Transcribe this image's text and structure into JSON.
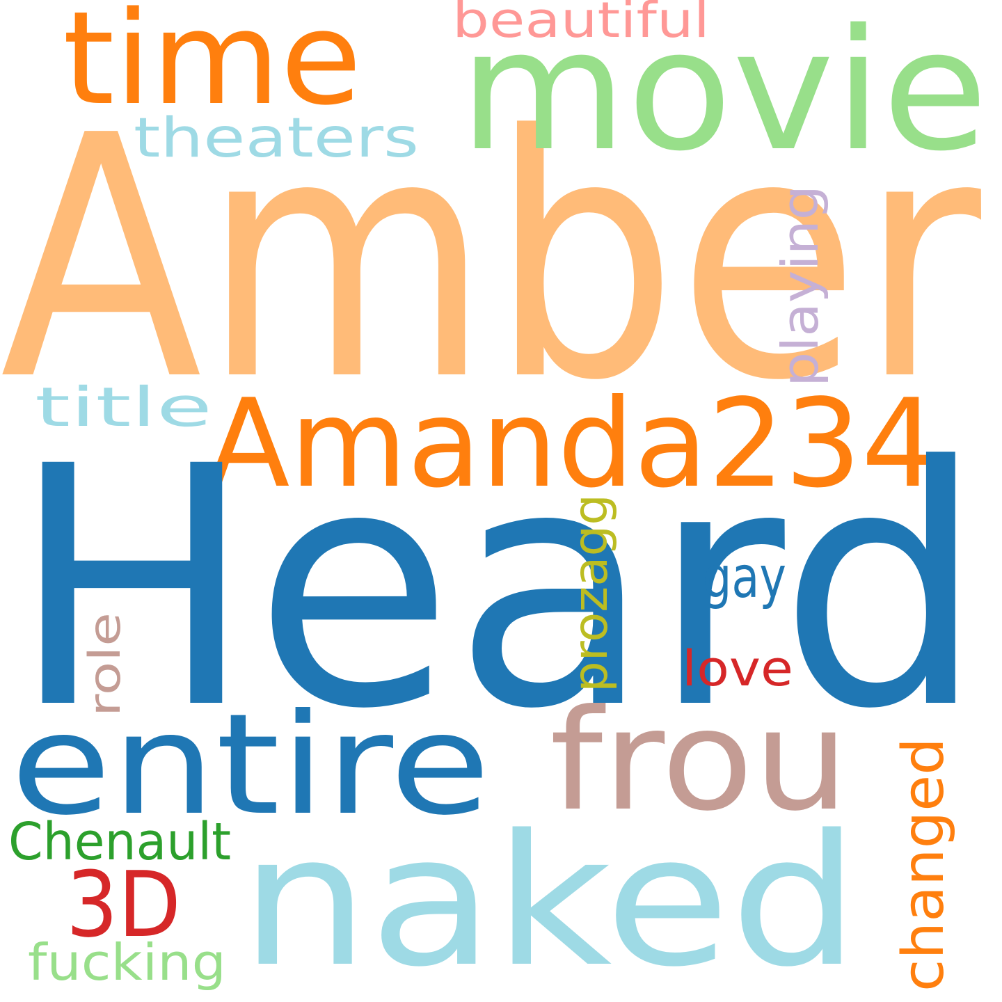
{
  "words": [
    {
      "id": "heard",
      "text": "Heard",
      "color": "#1f77b4",
      "orientation": "horizontal"
    },
    {
      "id": "amber",
      "text": "Amber",
      "color": "#ffbb78",
      "orientation": "horizontal"
    },
    {
      "id": "movie",
      "text": "movie",
      "color": "#98df8a",
      "orientation": "horizontal"
    },
    {
      "id": "time",
      "text": "time",
      "color": "#ff7f0e",
      "orientation": "horizontal"
    },
    {
      "id": "naked",
      "text": "naked",
      "color": "#9edae5",
      "orientation": "horizontal"
    },
    {
      "id": "amanda234",
      "text": "Amanda234",
      "color": "#ff7f0e",
      "orientation": "horizontal"
    },
    {
      "id": "entire",
      "text": "entire",
      "color": "#1f77b4",
      "orientation": "horizontal"
    },
    {
      "id": "frou",
      "text": "frou",
      "color": "#c49c94",
      "orientation": "horizontal"
    },
    {
      "id": "theaters",
      "text": "theaters",
      "color": "#9edae5",
      "orientation": "horizontal"
    },
    {
      "id": "beautiful",
      "text": "beautiful",
      "color": "#ff9896",
      "orientation": "horizontal"
    },
    {
      "id": "playing",
      "text": "playing",
      "color": "#c5b0d5",
      "orientation": "vertical"
    },
    {
      "id": "title",
      "text": "title",
      "color": "#9edae5",
      "orientation": "horizontal"
    },
    {
      "id": "prozagg",
      "text": "prozagg",
      "color": "#bcbd22",
      "orientation": "vertical"
    },
    {
      "id": "gay",
      "text": "gay",
      "color": "#1f77b4",
      "orientation": "horizontal"
    },
    {
      "id": "role",
      "text": "role",
      "color": "#c49c94",
      "orientation": "vertical"
    },
    {
      "id": "love",
      "text": "love",
      "color": "#d62728",
      "orientation": "horizontal"
    },
    {
      "id": "chenault",
      "text": "Chenault",
      "color": "#2ca02c",
      "orientation": "horizontal"
    },
    {
      "id": "3d",
      "text": "3D",
      "color": "#d62728",
      "orientation": "horizontal"
    },
    {
      "id": "changed",
      "text": "changed",
      "color": "#ff7f0e",
      "orientation": "vertical"
    },
    {
      "id": "fucking",
      "text": "fucking",
      "color": "#98df8a",
      "orientation": "horizontal"
    }
  ]
}
